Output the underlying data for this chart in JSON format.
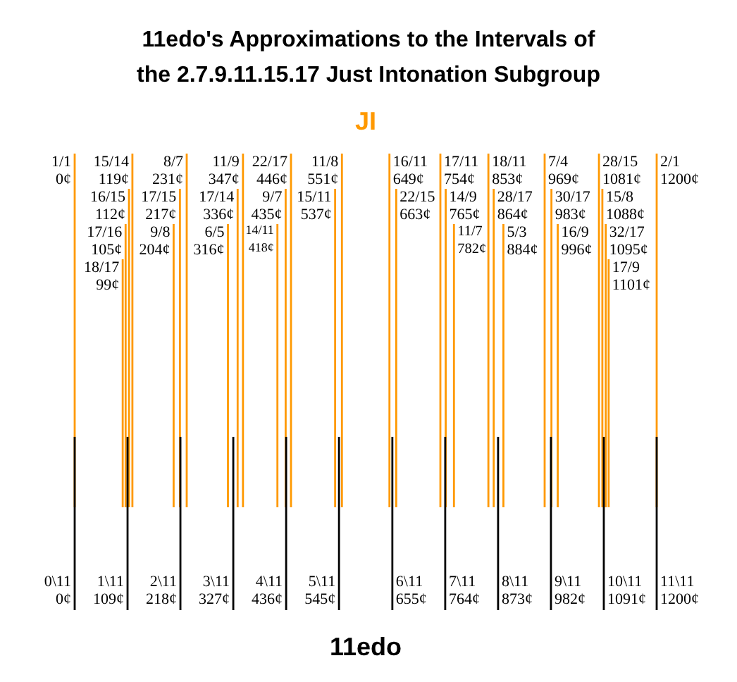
{
  "chart_data": [
    {
      "type": "other",
      "title": "11edo's Approximations to the Intervals of the 2.7.9.11.15.17 Just Intonation Subgroup",
      "categories": [
        "1/1",
        "18/17",
        "17/16",
        "16/15",
        "15/14",
        "9/8",
        "17/15",
        "8/7",
        "6/5",
        "17/14",
        "11/9",
        "14/11",
        "9/7",
        "22/17",
        "15/11",
        "11/8",
        "16/11",
        "22/15",
        "17/11",
        "14/9",
        "11/7",
        "18/11",
        "28/17",
        "5/3",
        "7/4",
        "30/17",
        "16/9",
        "28/15",
        "15/8",
        "32/17",
        "17/9",
        "2/1"
      ],
      "series": [
        {
          "name": "JI",
          "color": "#ff9900",
          "values": [
            0,
            99,
            105,
            112,
            119,
            204,
            217,
            231,
            316,
            336,
            347,
            418,
            435,
            446,
            537,
            551,
            649,
            663,
            754,
            765,
            782,
            853,
            864,
            884,
            969,
            983,
            996,
            1081,
            1088,
            1095,
            1101,
            1200
          ],
          "value_labels": [
            "0¢",
            "99¢",
            "105¢",
            "112¢",
            "119¢",
            "204¢",
            "217¢",
            "231¢",
            "316¢",
            "336¢",
            "347¢",
            "418¢",
            "435¢",
            "446¢",
            "537¢",
            "551¢",
            "649¢",
            "663¢",
            "754¢",
            "765¢",
            "782¢",
            "853¢",
            "864¢",
            "884¢",
            "969¢",
            "983¢",
            "996¢",
            "1081¢",
            "1088¢",
            "1095¢",
            "1101¢",
            "1200¢"
          ]
        }
      ]
    },
    {
      "type": "other",
      "categories": [
        "0\\11",
        "1\\11",
        "2\\11",
        "3\\11",
        "4\\11",
        "5\\11",
        "6\\11",
        "7\\11",
        "8\\11",
        "9\\11",
        "10\\11",
        "11\\11"
      ],
      "series": [
        {
          "name": "11edo",
          "color": "#000000",
          "values": [
            0,
            109,
            218,
            327,
            436,
            545,
            655,
            764,
            873,
            982,
            1091,
            1200
          ],
          "value_labels": [
            "0¢",
            "109¢",
            "218¢",
            "327¢",
            "436¢",
            "545¢",
            "655¢",
            "764¢",
            "873¢",
            "982¢",
            "1091¢",
            "1200¢"
          ]
        }
      ]
    }
  ]
}
